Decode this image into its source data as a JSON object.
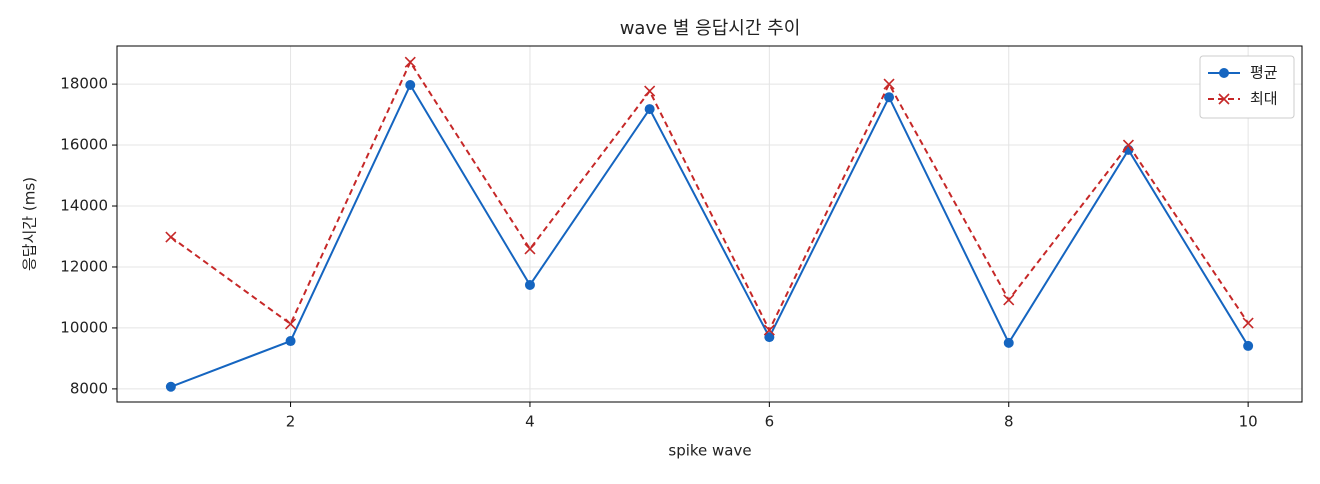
{
  "chart_data": {
    "type": "line",
    "title": "wave 별 응답시간 추이",
    "x_label": "spike wave",
    "y_label": "응답시간 (ms)",
    "x": [
      1,
      2,
      3,
      4,
      5,
      6,
      7,
      8,
      9,
      10
    ],
    "series": [
      {
        "name": "평균",
        "color": "#1565c0",
        "linestyle": "solid",
        "marker": "circle",
        "values": [
          8070,
          9570,
          17970,
          11410,
          17180,
          9700,
          17570,
          9510,
          15840,
          9410
        ]
      },
      {
        "name": "최대",
        "color": "#c62828",
        "linestyle": "dashed",
        "marker": "x",
        "values": [
          12980,
          10130,
          18720,
          12590,
          17770,
          9930,
          18000,
          10920,
          16000,
          10160
        ]
      }
    ],
    "xlim": [
      0.55,
      10.45
    ],
    "ylim": [
      7570,
      19250
    ],
    "xticks": [
      2,
      4,
      6,
      8,
      10
    ],
    "yticks": [
      8000,
      10000,
      12000,
      14000,
      16000,
      18000
    ],
    "grid": true,
    "legend": "upper right"
  }
}
